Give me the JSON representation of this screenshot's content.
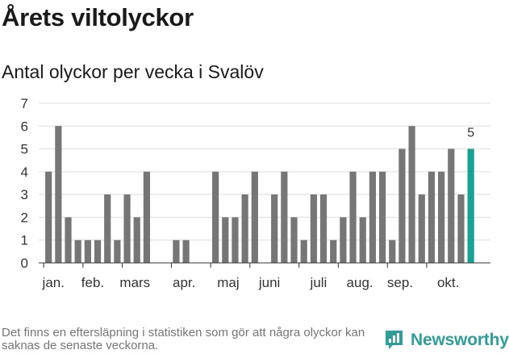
{
  "header": {
    "title": "Årets viltolyckor",
    "subtitle": "Antal olyckor per vecka i Svalöv"
  },
  "footer": {
    "note": "Det finns en eftersläpning i statistiken som gör att några olyckor kan saknas de senaste veckorna.",
    "brand": "Newsworthy"
  },
  "colors": {
    "bar": "#767676",
    "highlight": "#17a294",
    "grid": "#dddddd",
    "axis": "#333333",
    "brand": "#2e9e96"
  },
  "chart_data": {
    "type": "bar",
    "x_unit": "week",
    "weeks": [
      1,
      2,
      3,
      4,
      5,
      6,
      7,
      8,
      9,
      10,
      11,
      12,
      13,
      14,
      15,
      16,
      17,
      18,
      19,
      20,
      21,
      22,
      23,
      24,
      25,
      26,
      27,
      28,
      29,
      30,
      31,
      32,
      33,
      34,
      35,
      36,
      37,
      38,
      39,
      40,
      41,
      42,
      43
    ],
    "values": [
      4,
      6,
      2,
      1,
      1,
      1,
      3,
      1,
      3,
      2,
      4,
      0,
      0,
      1,
      1,
      0,
      0,
      4,
      2,
      2,
      3,
      4,
      0,
      3,
      4,
      2,
      1,
      3,
      3,
      1,
      2,
      4,
      2,
      4,
      4,
      1,
      5,
      6,
      3,
      4,
      4,
      5,
      3
    ],
    "highlight": {
      "week": 44,
      "value": 5,
      "label": "5"
    },
    "month_labels": [
      {
        "label": "jan.",
        "week": 1.5
      },
      {
        "label": "feb.",
        "week": 5.5
      },
      {
        "label": "mars",
        "week": 9.8
      },
      {
        "label": "apr.",
        "week": 14.8
      },
      {
        "label": "maj",
        "week": 19.3
      },
      {
        "label": "juni",
        "week": 23.5
      },
      {
        "label": "juli",
        "week": 28.5
      },
      {
        "label": "aug.",
        "week": 32.7
      },
      {
        "label": "sep.",
        "week": 36.8
      },
      {
        "label": "okt.",
        "week": 41.7
      }
    ],
    "month_ticks": [
      1,
      5,
      9,
      14,
      18,
      22,
      27,
      31,
      36,
      40
    ],
    "yticks": [
      0,
      1,
      2,
      3,
      4,
      5,
      6,
      7
    ],
    "ylim": [
      0,
      7
    ],
    "xlim": [
      0,
      46
    ],
    "grid": true
  }
}
